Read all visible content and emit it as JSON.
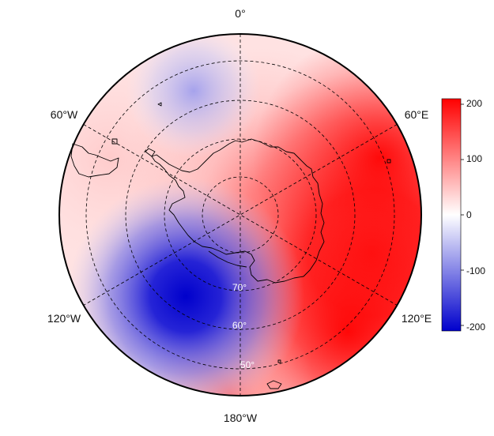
{
  "map": {
    "projection": "south-polar-stereographic",
    "longitude_labels": {
      "top": "0°",
      "upper_left": "60°W",
      "upper_right": "60°E",
      "lower_left": "120°W",
      "lower_right": "120°E",
      "bottom": "180°W"
    },
    "latitude_labels": [
      "70°",
      "60°",
      "50°"
    ],
    "field": {
      "description_of_pattern": "positive anomaly over east hemisphere, strong negative lobe near 150°W",
      "max_value": 210,
      "min_value": -215
    }
  },
  "colorbar": {
    "ticks": [
      "200",
      "100",
      "0",
      "-100",
      "-200"
    ],
    "tick_values": [
      200,
      100,
      0,
      -100,
      -200
    ],
    "range": [
      -210,
      210
    ],
    "colors": {
      "high": "#ff0000",
      "mid": "#ffffff",
      "low": "#0000cc"
    }
  }
}
